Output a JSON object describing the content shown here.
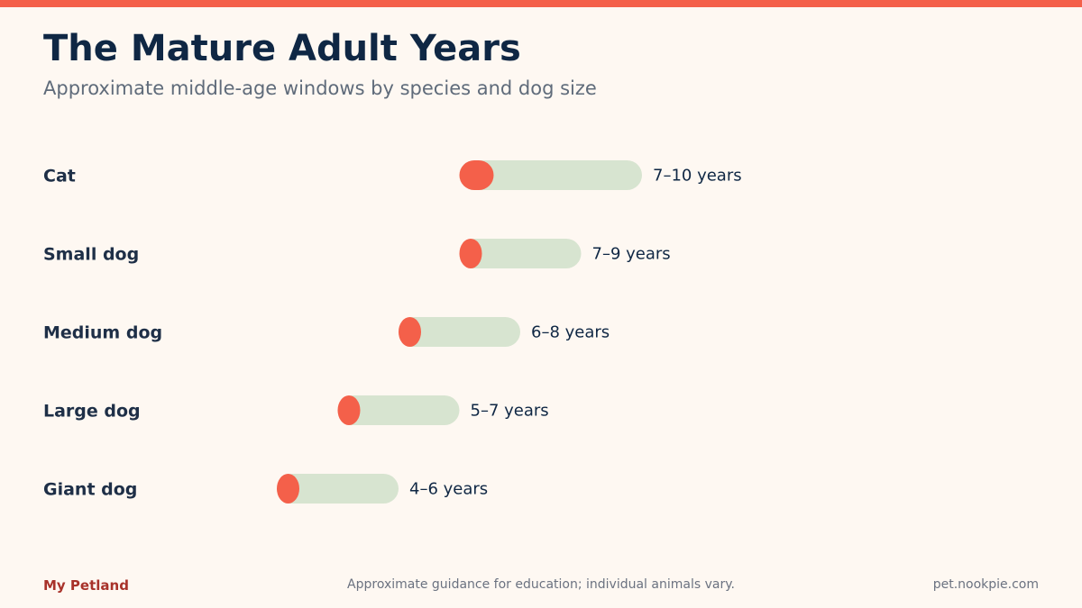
{
  "header": {
    "title": "The Mature Adult Years",
    "subtitle": "Approximate middle-age windows by species and dog size"
  },
  "footer": {
    "brand": "My Petland",
    "note": "Approximate guidance for education; individual animals vary.",
    "site": "pet.nookpie.com"
  },
  "colors": {
    "background": "#fef8f2",
    "accent": "#f4604a",
    "range_bar": "#d7e4d0",
    "title": "#0f2744",
    "label": "#1e2f47",
    "brand": "#a8322a"
  },
  "chart_data": {
    "type": "range-bar",
    "title": "The Mature Adult Years",
    "subtitle": "Approximate middle-age windows by species and dog size",
    "xlabel": "",
    "ylabel": "",
    "unit": "years",
    "xlim": [
      0,
      12
    ],
    "grid": false,
    "categories": [
      "Cat",
      "Small dog",
      "Medium dog",
      "Large dog",
      "Giant dog"
    ],
    "ranges": [
      {
        "label": "Cat",
        "start": 7,
        "end": 10,
        "value_label": "7–10 years"
      },
      {
        "label": "Small dog",
        "start": 7,
        "end": 9,
        "value_label": "7–9 years"
      },
      {
        "label": "Medium dog",
        "start": 6,
        "end": 8,
        "value_label": "6–8 years"
      },
      {
        "label": "Large dog",
        "start": 5,
        "end": 7,
        "value_label": "5–7 years"
      },
      {
        "label": "Giant dog",
        "start": 4,
        "end": 6,
        "value_label": "4–6 years"
      }
    ]
  }
}
